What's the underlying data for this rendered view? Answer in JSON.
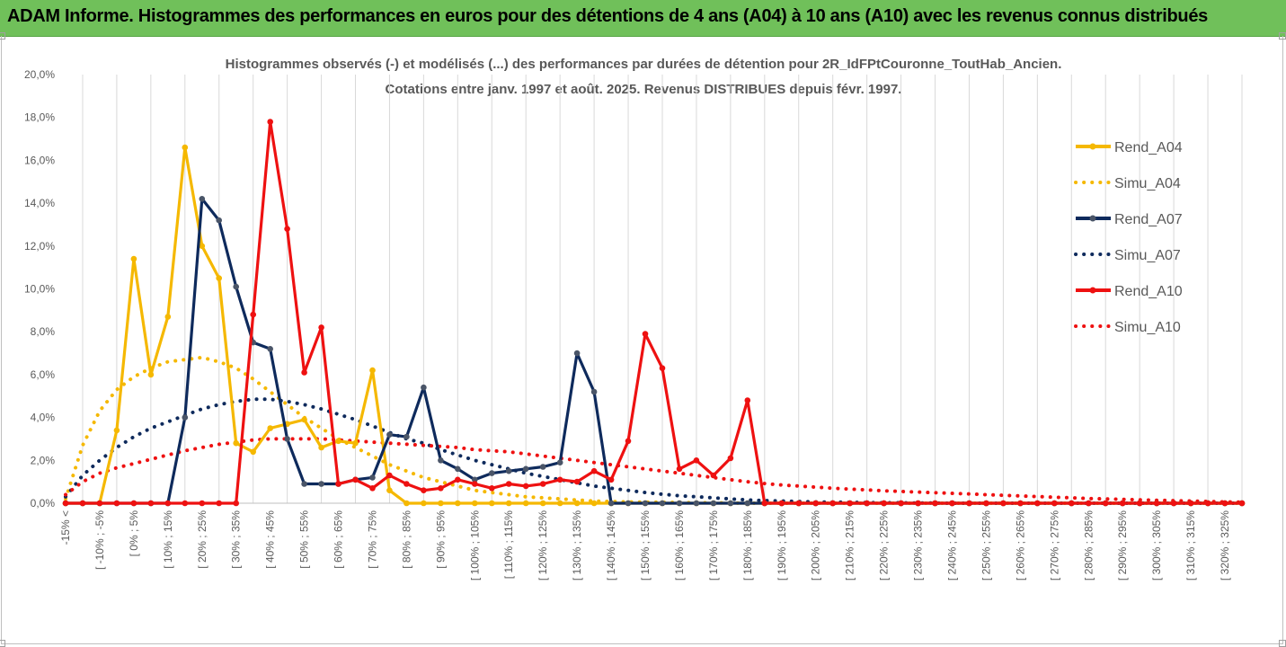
{
  "banner": {
    "title": "ADAM Informe. Histogrammes des performances en euros pour des détentions de 4 ans (A04) à 10 ans (A10) avec les revenus connus distribués"
  },
  "chart_data": {
    "type": "line",
    "title_line1": "Histogrammes observés (-) et modélisés (...) des performances par durées de détention pour 2R_IdFPtCouronne_ToutHab_Ancien.",
    "title_line2": "Cotations entre janv. 1997 et août. 2025. Revenus DISTRIBUES depuis févr. 1997.",
    "ylim": [
      0,
      20
    ],
    "y_ticks": [
      "0,0%",
      "2,0%",
      "4,0%",
      "6,0%",
      "8,0%",
      "10,0%",
      "12,0%",
      "14,0%",
      "16,0%",
      "18,0%",
      "20,0%"
    ],
    "x_labels": [
      "-15% <",
      "[ -10% ; -5%",
      "[ 0% ; 5%",
      "[ 10% ; 15%",
      "[ 20% ; 25%",
      "[ 30% ; 35%",
      "[ 40% ; 45%",
      "[ 50% ; 55%",
      "[ 60% ; 65%",
      "[ 70% ; 75%",
      "[ 80% ; 85%",
      "[ 90% ; 95%",
      "[ 100% ; 105%",
      "[ 110% ; 115%",
      "[ 120% ; 125%",
      "[ 130% ; 135%",
      "[ 140% ; 145%",
      "[ 150% ; 155%",
      "[ 160% ; 165%",
      "[ 170% ; 175%",
      "[ 180% ; 185%",
      "[ 190% ; 195%",
      "[ 200% ; 205%",
      "[ 210% ; 215%",
      "[ 220% ; 225%",
      "[ 230% ; 235%",
      "[ 240% ; 245%",
      "[ 250% ; 255%",
      "[ 260% ; 265%",
      "[ 270% ; 275%",
      "[ 280% ; 285%",
      "[ 290% ; 295%",
      "[ 300% ; 305%",
      "[ 310% ; 315%",
      "[ 320% ; 325%"
    ],
    "n_categories": 70,
    "legend_position": "right",
    "grid": "vertical",
    "series": [
      {
        "name": "Rend_A04",
        "style": "solid",
        "markers": true,
        "color": "#f5b800",
        "values": [
          0,
          0,
          0,
          3.4,
          11.4,
          6.0,
          8.7,
          16.6,
          12.0,
          10.5,
          2.8,
          2.4,
          3.5,
          3.7,
          3.9,
          2.6,
          2.9,
          2.8,
          6.2,
          0.6,
          0,
          0,
          0,
          0,
          0,
          0,
          0,
          0,
          0,
          0,
          0,
          0,
          0,
          0,
          0,
          0,
          0,
          0,
          0,
          0,
          0,
          0,
          0,
          0,
          0,
          0,
          0,
          0,
          0,
          0,
          0,
          0,
          0,
          0,
          0,
          0,
          0,
          0,
          0,
          0,
          0,
          0,
          0,
          0,
          0,
          0,
          0,
          0,
          0,
          0
        ]
      },
      {
        "name": "Simu_A04",
        "style": "dotted",
        "markers": false,
        "color": "#f5b800",
        "values": [
          0.2,
          2.7,
          4.3,
          5.3,
          5.9,
          6.3,
          6.6,
          6.7,
          6.8,
          6.6,
          6.3,
          5.8,
          5.2,
          4.6,
          4.0,
          3.5,
          3.0,
          2.6,
          2.2,
          1.8,
          1.5,
          1.2,
          1.0,
          0.8,
          0.6,
          0.5,
          0.4,
          0.3,
          0.25,
          0.2,
          0.15,
          0.1,
          0.08,
          0.06,
          0.05,
          0.04,
          0.03,
          0.02,
          0.02,
          0.01,
          0,
          0,
          0,
          0,
          0,
          0,
          0,
          0,
          0,
          0,
          0,
          0,
          0,
          0,
          0,
          0,
          0,
          0,
          0,
          0,
          0,
          0,
          0,
          0,
          0,
          0,
          0,
          0,
          0,
          0
        ]
      },
      {
        "name": "Rend_A07",
        "style": "solid",
        "markers": true,
        "color": "#0e2a5c",
        "values": [
          0,
          0,
          0,
          0,
          0,
          0,
          0,
          4.0,
          14.2,
          13.2,
          10.1,
          7.5,
          7.2,
          3.0,
          0.9,
          0.9,
          0.9,
          1.1,
          1.2,
          3.2,
          3.1,
          5.4,
          2.0,
          1.6,
          1.1,
          1.4,
          1.5,
          1.6,
          1.7,
          1.9,
          7.0,
          5.2,
          0,
          0,
          0,
          0,
          0,
          0,
          0,
          0,
          0,
          0,
          0,
          0,
          0,
          0,
          0,
          0,
          0,
          0,
          0,
          0,
          0,
          0,
          0,
          0,
          0,
          0,
          0,
          0,
          0,
          0,
          0,
          0,
          0,
          0,
          0,
          0,
          0,
          0
        ]
      },
      {
        "name": "Simu_A07",
        "style": "dotted",
        "markers": false,
        "color": "#0e2a5c",
        "values": [
          0.3,
          1.3,
          2.0,
          2.6,
          3.1,
          3.5,
          3.8,
          4.1,
          4.4,
          4.6,
          4.75,
          4.85,
          4.85,
          4.75,
          4.6,
          4.4,
          4.15,
          3.9,
          3.6,
          3.3,
          3.0,
          2.8,
          2.5,
          2.25,
          2.0,
          1.8,
          1.6,
          1.4,
          1.25,
          1.1,
          0.95,
          0.8,
          0.7,
          0.6,
          0.5,
          0.42,
          0.35,
          0.3,
          0.25,
          0.2,
          0.15,
          0.12,
          0.1,
          0.08,
          0.06,
          0.05,
          0.04,
          0.03,
          0.02,
          0.02,
          0.01,
          0.01,
          0,
          0,
          0,
          0,
          0,
          0,
          0,
          0,
          0,
          0,
          0,
          0,
          0,
          0,
          0,
          0,
          0,
          0
        ]
      },
      {
        "name": "Rend_A10",
        "style": "solid",
        "markers": true,
        "color": "#ee1111",
        "values": [
          0,
          0,
          0,
          0,
          0,
          0,
          0,
          0,
          0,
          0,
          0,
          8.8,
          17.8,
          12.8,
          6.1,
          8.2,
          0.9,
          1.1,
          0.7,
          1.3,
          0.9,
          0.6,
          0.7,
          1.1,
          0.9,
          0.7,
          0.9,
          0.8,
          0.9,
          1.1,
          1.0,
          1.5,
          1.1,
          2.9,
          7.9,
          6.3,
          1.6,
          2.0,
          1.3,
          2.1,
          4.8,
          0,
          0,
          0,
          0,
          0,
          0,
          0,
          0,
          0,
          0,
          0,
          0,
          0,
          0,
          0,
          0,
          0,
          0,
          0,
          0,
          0,
          0,
          0,
          0,
          0,
          0,
          0,
          0,
          0
        ]
      },
      {
        "name": "Simu_A10",
        "style": "dotted",
        "markers": false,
        "color": "#ee1111",
        "values": [
          0.4,
          1.0,
          1.4,
          1.65,
          1.85,
          2.05,
          2.25,
          2.45,
          2.6,
          2.75,
          2.85,
          2.95,
          3.0,
          3.0,
          3.0,
          3.0,
          2.95,
          2.9,
          2.85,
          2.8,
          2.75,
          2.7,
          2.65,
          2.6,
          2.5,
          2.45,
          2.4,
          2.3,
          2.2,
          2.1,
          2.0,
          1.9,
          1.8,
          1.7,
          1.6,
          1.5,
          1.4,
          1.3,
          1.2,
          1.1,
          1.0,
          0.92,
          0.85,
          0.8,
          0.75,
          0.7,
          0.66,
          0.62,
          0.58,
          0.55,
          0.52,
          0.49,
          0.46,
          0.43,
          0.4,
          0.37,
          0.34,
          0.31,
          0.28,
          0.25,
          0.22,
          0.2,
          0.18,
          0.16,
          0.14,
          0.12,
          0.1,
          0.08,
          0.06,
          0.05
        ]
      }
    ]
  }
}
